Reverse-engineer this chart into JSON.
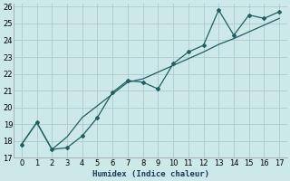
{
  "xlabel": "Humidex (Indice chaleur)",
  "background_color": "#cce8e8",
  "grid_color": "#aacccc",
  "line_color": "#206060",
  "xlim": [
    -0.5,
    17.5
  ],
  "ylim": [
    17,
    26.2
  ],
  "yticks": [
    17,
    18,
    19,
    20,
    21,
    22,
    23,
    24,
    25,
    26
  ],
  "xticks": [
    0,
    1,
    2,
    3,
    4,
    5,
    6,
    7,
    8,
    9,
    10,
    11,
    12,
    13,
    14,
    15,
    16,
    17
  ],
  "jagged_x": [
    0,
    1,
    2,
    3,
    4,
    5,
    6,
    7,
    8,
    9,
    10,
    11,
    12,
    13,
    14,
    15,
    16,
    17
  ],
  "jagged_y": [
    17.8,
    19.1,
    17.5,
    17.6,
    18.3,
    19.4,
    20.9,
    21.6,
    21.5,
    21.1,
    22.6,
    23.3,
    23.7,
    25.8,
    24.3,
    25.5,
    25.3,
    25.7
  ],
  "trend_x": [
    0,
    1,
    2,
    3,
    4,
    5,
    6,
    7,
    8,
    9,
    10,
    11,
    12,
    13,
    14,
    15,
    16,
    17
  ],
  "trend_y": [
    17.8,
    19.1,
    17.5,
    18.25,
    19.4,
    20.1,
    20.8,
    21.5,
    21.7,
    22.1,
    22.5,
    22.9,
    23.3,
    23.75,
    24.1,
    24.5,
    24.9,
    25.3
  ]
}
